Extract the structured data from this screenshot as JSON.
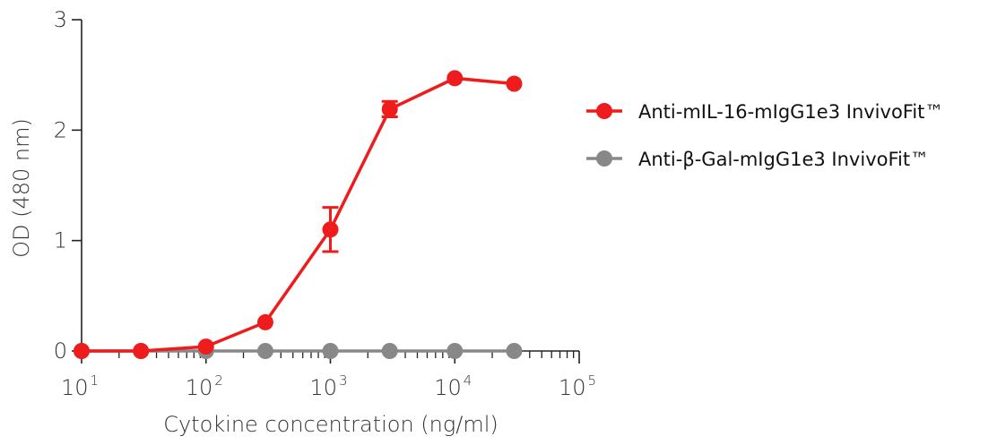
{
  "chart_data": {
    "type": "line",
    "xlabel": "Cytokine concentration (ng/ml)",
    "ylabel": "OD (480 nm)",
    "x_scale": "log",
    "xlim": [
      10,
      100000
    ],
    "ylim": [
      0,
      3
    ],
    "x_ticks": [
      {
        "value": 10,
        "base": "10",
        "exp": "1"
      },
      {
        "value": 100,
        "base": "10",
        "exp": "2"
      },
      {
        "value": 1000,
        "base": "10",
        "exp": "3"
      },
      {
        "value": 10000,
        "base": "10",
        "exp": "4"
      },
      {
        "value": 100000,
        "base": "10",
        "exp": "5"
      }
    ],
    "y_ticks": [
      0,
      1,
      2,
      3
    ],
    "legend_position": "right",
    "series": [
      {
        "name": "Anti-mIL-16-mIgG1e3 InvivoFit™",
        "color": "#ee1c1c",
        "x": [
          10,
          30,
          100,
          300,
          1000,
          3000,
          10000,
          30000
        ],
        "y": [
          0.0,
          0.0,
          0.04,
          0.26,
          1.1,
          2.19,
          2.47,
          2.42
        ],
        "error": [
          0,
          0,
          0,
          0,
          0.2,
          0.07,
          0,
          0
        ]
      },
      {
        "name": "Anti-β-Gal-mIgG1e3 InvivoFit™",
        "color": "#888888",
        "x": [
          10,
          30,
          100,
          300,
          1000,
          3000,
          10000,
          30000
        ],
        "y": [
          0.0,
          0.0,
          0.0,
          0.0,
          0.0,
          0.0,
          0.0,
          0.0
        ],
        "error": [
          0,
          0,
          0,
          0,
          0,
          0,
          0,
          0
        ]
      }
    ]
  }
}
